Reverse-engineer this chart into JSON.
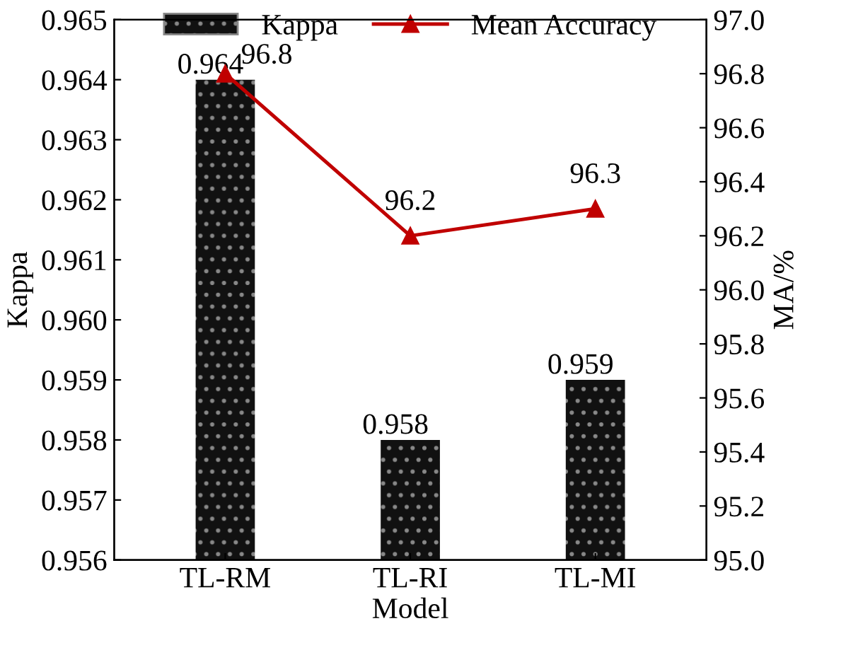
{
  "chart_data": {
    "type": "bar",
    "xlabel": "Model",
    "ylabel": "Kappa",
    "y2label": "MA/%",
    "categories": [
      "TL-RM",
      "TL-RI",
      "TL-MI"
    ],
    "series": [
      {
        "name": "Kappa",
        "color": "#111111",
        "values": [
          0.964,
          0.958,
          0.959
        ]
      },
      {
        "name": "Mean Accuracy",
        "type": "line",
        "axis": "y2",
        "color": "#c00000",
        "marker": "triangle",
        "values": [
          96.8,
          96.2,
          96.3
        ]
      }
    ],
    "ylim": [
      0.956,
      0.965
    ],
    "yticks": [
      0.956,
      0.957,
      0.958,
      0.959,
      {
        "value": 0.96,
        "label": "0.960"
      },
      0.961,
      0.962,
      0.963,
      0.964,
      0.965
    ],
    "y2lim": [
      95.0,
      97.0
    ],
    "y2ticks": [
      {
        "value": 95,
        "label": "95.0"
      },
      95.2,
      95.4,
      95.6,
      95.8,
      {
        "value": 96,
        "label": "96.0"
      },
      96.2,
      96.4,
      96.6,
      96.8,
      {
        "value": 97,
        "label": "97.0"
      }
    ],
    "data_labels": true,
    "legend": "top",
    "grid": false
  }
}
